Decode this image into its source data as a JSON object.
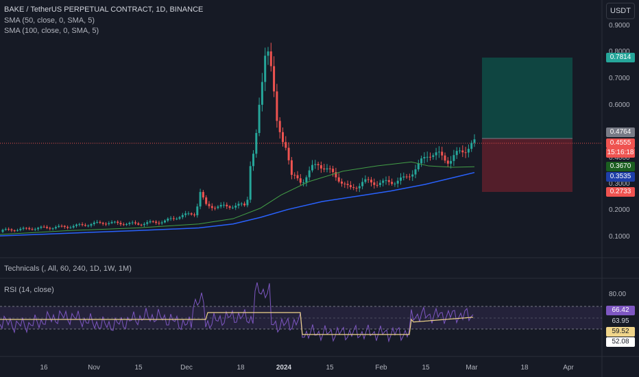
{
  "legend": {
    "title": "BAKE / TetherUS PERPETUAL CONTRACT, 1D, BINANCE",
    "sma50": "SMA (50, close, 0, SMA, 5)",
    "sma100": "SMA (100, close, 0, SMA, 5)"
  },
  "currency_button": "USDT",
  "price_axis": {
    "ticks": [
      "0.9000",
      "0.8000",
      "0.7000",
      "0.6000",
      "0.4000",
      "0.3000",
      "0.2000",
      "0.1000"
    ]
  },
  "price_badges": {
    "target": "0.7814",
    "entry": "0.4764",
    "last_price": "0.4555",
    "countdown": "15:16:18",
    "sma50_value": "0.3670",
    "sma100_value": "0.3535",
    "stop": "0.2733"
  },
  "technicals_label": "Technicals (, All, 60, 240, 1D, 1W, 1M)",
  "rsi": {
    "label": "RSI (14, close)",
    "tick_80": "80.00",
    "value": "66.42",
    "value_2": "63.95",
    "ma_value": "59.52",
    "lower": "52.08"
  },
  "time_axis": [
    "16",
    "Nov",
    "15",
    "Dec",
    "18",
    "2024",
    "15",
    "Feb",
    "15",
    "Mar",
    "18",
    "Apr"
  ],
  "colors": {
    "up": "#26a69a",
    "down": "#ef5350",
    "sma50": "#43a047",
    "sma100": "#2962ff",
    "rsi_line": "#7e57c2",
    "rsi_ma": "#f0d58a",
    "target_zone": "#0e4a45",
    "stop_zone": "#5a1f2b"
  }
}
